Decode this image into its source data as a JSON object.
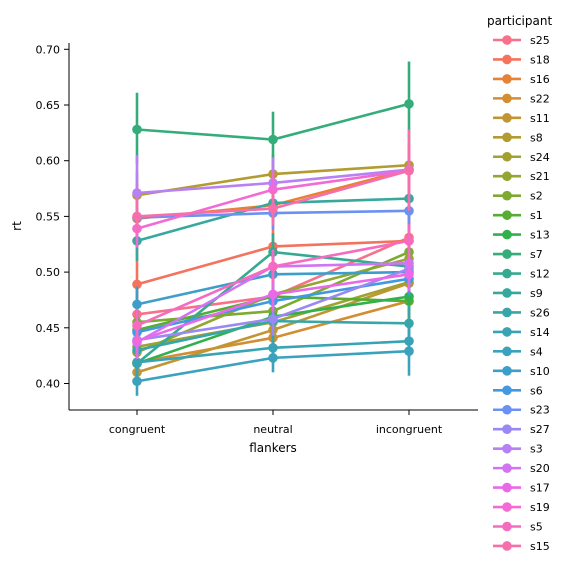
{
  "chart_data": {
    "type": "line",
    "xlabel": "flankers",
    "ylabel": "rt",
    "categories": [
      "congruent",
      "neutral",
      "incongruent"
    ],
    "ylim": [
      0.375,
      0.705
    ],
    "yticks": [
      "0.40",
      "0.45",
      "0.50",
      "0.55",
      "0.60",
      "0.65",
      "0.70"
    ],
    "ytick_values": [
      0.4,
      0.45,
      0.5,
      0.55,
      0.6,
      0.65,
      0.7
    ],
    "grid": false,
    "legend_title": "participant",
    "legend_placement": "right, outside plot",
    "series": [
      {
        "name": "s25",
        "color": "#f77189",
        "values": [
          0.462,
          0.478,
          0.531
        ],
        "ci": [
          [
            0.44,
            0.487
          ],
          [
            0.463,
            0.495
          ],
          [
            0.503,
            0.56
          ]
        ]
      },
      {
        "name": "s18",
        "color": "#f4735d",
        "values": [
          0.489,
          0.523,
          0.528
        ],
        "ci": [
          [
            0.46,
            0.52
          ],
          [
            0.505,
            0.54
          ],
          [
            0.505,
            0.55
          ]
        ]
      },
      {
        "name": "s16",
        "color": "#e58235",
        "values": [
          0.548,
          0.56,
          0.592
        ],
        "ci": [
          [
            0.52,
            0.58
          ],
          [
            0.54,
            0.58
          ],
          [
            0.57,
            0.615
          ]
        ]
      },
      {
        "name": "s22",
        "color": "#d28e31",
        "values": [
          0.419,
          0.441,
          0.474
        ],
        "ci": [
          [
            0.405,
            0.435
          ],
          [
            0.428,
            0.455
          ],
          [
            0.455,
            0.494
          ]
        ]
      },
      {
        "name": "s11",
        "color": "#c29533",
        "values": [
          0.41,
          0.448,
          0.49
        ],
        "ci": [
          [
            0.398,
            0.423
          ],
          [
            0.434,
            0.462
          ],
          [
            0.47,
            0.51
          ]
        ]
      },
      {
        "name": "s8",
        "color": "#b29b31",
        "values": [
          0.569,
          0.588,
          0.596
        ],
        "ci": [
          [
            0.548,
            0.59
          ],
          [
            0.57,
            0.606
          ],
          [
            0.578,
            0.614
          ]
        ]
      },
      {
        "name": "s24",
        "color": "#a3a031",
        "values": [
          0.433,
          0.455,
          0.491
        ],
        "ci": [
          [
            0.418,
            0.448
          ],
          [
            0.44,
            0.47
          ],
          [
            0.474,
            0.508
          ]
        ]
      },
      {
        "name": "s21",
        "color": "#93a631",
        "values": [
          0.428,
          0.48,
          0.512
        ],
        "ci": [
          [
            0.413,
            0.443
          ],
          [
            0.463,
            0.497
          ],
          [
            0.494,
            0.53
          ]
        ]
      },
      {
        "name": "s2",
        "color": "#7daa31",
        "values": [
          0.455,
          0.465,
          0.518
        ],
        "ci": [
          [
            0.44,
            0.47
          ],
          [
            0.45,
            0.48
          ],
          [
            0.5,
            0.536
          ]
        ]
      },
      {
        "name": "s1",
        "color": "#56ad32",
        "values": [
          0.448,
          0.478,
          0.474
        ],
        "ci": [
          [
            0.433,
            0.463
          ],
          [
            0.463,
            0.493
          ],
          [
            0.458,
            0.49
          ]
        ]
      },
      {
        "name": "s13",
        "color": "#32b04d",
        "values": [
          0.418,
          0.46,
          0.478
        ],
        "ci": [
          [
            0.403,
            0.433
          ],
          [
            0.445,
            0.475
          ],
          [
            0.462,
            0.494
          ]
        ]
      },
      {
        "name": "s7",
        "color": "#34ad7a",
        "values": [
          0.628,
          0.619,
          0.651
        ],
        "ci": [
          [
            0.597,
            0.661
          ],
          [
            0.594,
            0.644
          ],
          [
            0.614,
            0.689
          ]
        ]
      },
      {
        "name": "s12",
        "color": "#35aa90",
        "values": [
          0.418,
          0.518,
          0.505
        ],
        "ci": [
          [
            0.403,
            0.433
          ],
          [
            0.5,
            0.535
          ],
          [
            0.488,
            0.522
          ]
        ]
      },
      {
        "name": "s9",
        "color": "#36a89e",
        "values": [
          0.528,
          0.562,
          0.566
        ],
        "ci": [
          [
            0.51,
            0.546
          ],
          [
            0.545,
            0.58
          ],
          [
            0.548,
            0.584
          ]
        ]
      },
      {
        "name": "s26",
        "color": "#37a6a9",
        "values": [
          0.43,
          0.456,
          0.454
        ],
        "ci": [
          [
            0.415,
            0.445
          ],
          [
            0.44,
            0.472
          ],
          [
            0.438,
            0.47
          ]
        ]
      },
      {
        "name": "s14",
        "color": "#38a4b3",
        "values": [
          0.419,
          0.432,
          0.438
        ],
        "ci": [
          [
            0.405,
            0.433
          ],
          [
            0.418,
            0.446
          ],
          [
            0.424,
            0.452
          ]
        ]
      },
      {
        "name": "s4",
        "color": "#3aa2bd",
        "values": [
          0.402,
          0.423,
          0.429
        ],
        "ci": [
          [
            0.389,
            0.415
          ],
          [
            0.41,
            0.436
          ],
          [
            0.407,
            0.451
          ]
        ]
      },
      {
        "name": "s10",
        "color": "#3d9fc9",
        "values": [
          0.471,
          0.498,
          0.5
        ],
        "ci": [
          [
            0.455,
            0.487
          ],
          [
            0.483,
            0.513
          ],
          [
            0.485,
            0.515
          ]
        ]
      },
      {
        "name": "s6",
        "color": "#4299e2",
        "values": [
          0.446,
          0.474,
          0.494
        ],
        "ci": [
          [
            0.431,
            0.461
          ],
          [
            0.459,
            0.489
          ],
          [
            0.479,
            0.509
          ]
        ]
      },
      {
        "name": "s23",
        "color": "#6b91f3",
        "values": [
          0.549,
          0.553,
          0.555
        ],
        "ci": [
          [
            0.533,
            0.565
          ],
          [
            0.538,
            0.568
          ],
          [
            0.54,
            0.57
          ]
        ]
      },
      {
        "name": "s27",
        "color": "#9a88f4",
        "values": [
          0.439,
          0.458,
          0.503
        ],
        "ci": [
          [
            0.424,
            0.454
          ],
          [
            0.443,
            0.473
          ],
          [
            0.488,
            0.518
          ]
        ]
      },
      {
        "name": "s3",
        "color": "#b97ff4",
        "values": [
          0.571,
          0.58,
          0.592
        ],
        "ci": [
          [
            0.537,
            0.605
          ],
          [
            0.558,
            0.603
          ],
          [
            0.575,
            0.609
          ]
        ]
      },
      {
        "name": "s20",
        "color": "#d174f2",
        "values": [
          0.437,
          0.505,
          0.508
        ],
        "ci": [
          [
            0.422,
            0.452
          ],
          [
            0.49,
            0.52
          ],
          [
            0.493,
            0.523
          ]
        ]
      },
      {
        "name": "s17",
        "color": "#ea69e8",
        "values": [
          0.438,
          0.48,
          0.498
        ],
        "ci": [
          [
            0.423,
            0.453
          ],
          [
            0.465,
            0.495
          ],
          [
            0.483,
            0.513
          ]
        ]
      },
      {
        "name": "s19",
        "color": "#f46ad4",
        "values": [
          0.539,
          0.574,
          0.591
        ],
        "ci": [
          [
            0.522,
            0.556
          ],
          [
            0.558,
            0.59
          ],
          [
            0.57,
            0.612
          ]
        ]
      },
      {
        "name": "s5",
        "color": "#f56bc0",
        "values": [
          0.452,
          0.505,
          0.528
        ],
        "ci": [
          [
            0.437,
            0.467
          ],
          [
            0.49,
            0.52
          ],
          [
            0.513,
            0.543
          ]
        ]
      },
      {
        "name": "s15",
        "color": "#f66faa",
        "values": [
          0.55,
          0.557,
          0.591
        ],
        "ci": [
          [
            0.534,
            0.566
          ],
          [
            0.542,
            0.572
          ],
          [
            0.555,
            0.628
          ]
        ]
      }
    ]
  }
}
